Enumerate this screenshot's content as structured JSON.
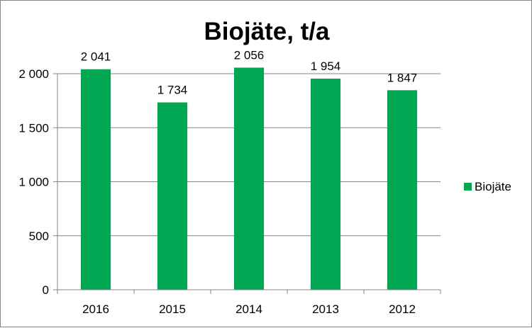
{
  "chart_data": {
    "type": "bar",
    "title": "Biojäte, t/a",
    "xlabel": "",
    "ylabel": "",
    "categories": [
      "2016",
      "2015",
      "2014",
      "2013",
      "2012"
    ],
    "series": [
      {
        "name": "Biojäte",
        "values": [
          2041,
          1734,
          2056,
          1954,
          1847
        ],
        "data_labels": [
          "2 041",
          "1 734",
          "2 056",
          "1 954",
          "1 847"
        ],
        "color": "#00a651"
      }
    ],
    "ylim": [
      0,
      2000
    ],
    "yticks": [
      0,
      500,
      1000,
      1500,
      2000
    ],
    "ytick_labels": [
      "0",
      "500",
      "1 000",
      "1 500",
      "2 000"
    ],
    "grid": true,
    "gridline_color": "#868686",
    "legend_position": "right"
  }
}
